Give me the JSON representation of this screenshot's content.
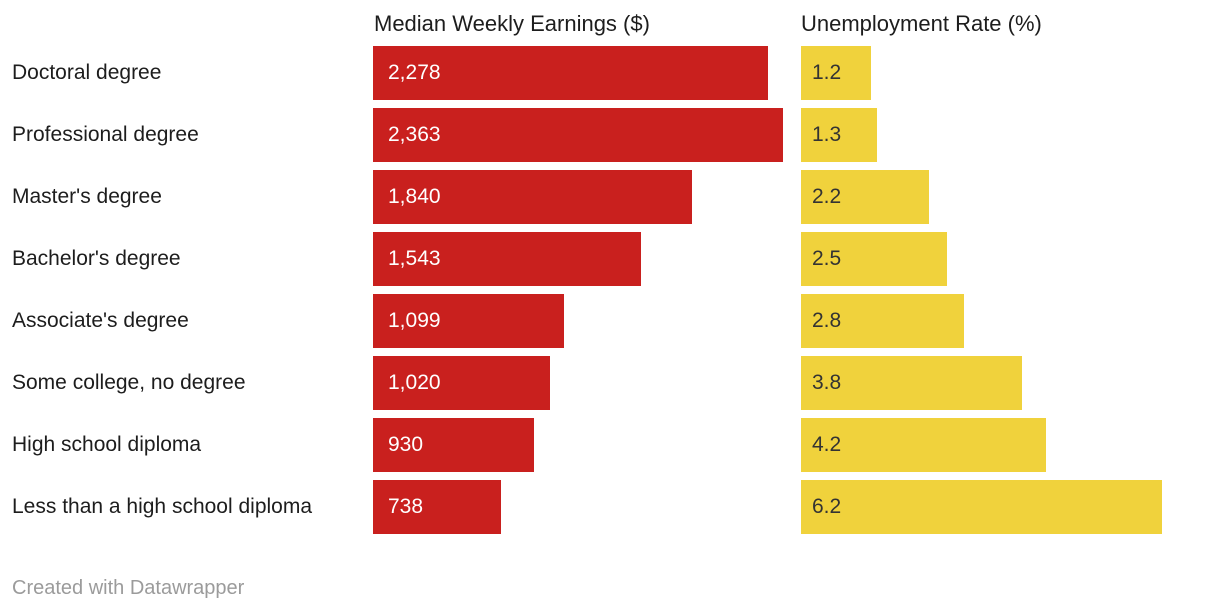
{
  "chart": {
    "earnings_header": "Median Weekly Earnings ($)",
    "rate_header": "Unemployment Rate (%)",
    "footer": "Created with Datawrapper"
  },
  "colors": {
    "earnings_bar": "#c9201e",
    "rate_bar": "#f0d23c",
    "earnings_value_text": "#ffffff",
    "rate_value_text": "#333333",
    "label_text": "#1d1d1d",
    "header_text": "#1d1d1d",
    "footer_text": "#9b9b9b"
  },
  "chart_data": {
    "type": "bar",
    "orientation": "horizontal",
    "title": "",
    "categories": [
      "Doctoral degree",
      "Professional degree",
      "Master's degree",
      "Bachelor's degree",
      "Associate's degree",
      "Some college, no degree",
      "High school diploma",
      "Less than a high school diploma"
    ],
    "series": [
      {
        "name": "Median Weekly Earnings ($)",
        "values": [
          2278,
          2363,
          1840,
          1543,
          1099,
          1020,
          930,
          738
        ],
        "value_labels": [
          "2,278",
          "2,363",
          "1,840",
          "1,543",
          "1,099",
          "1,020",
          "930",
          "738"
        ],
        "color": "#c9201e",
        "xlim": [
          0,
          2363
        ]
      },
      {
        "name": "Unemployment Rate (%)",
        "values": [
          1.2,
          1.3,
          2.2,
          2.5,
          2.8,
          3.8,
          4.2,
          6.2
        ],
        "value_labels": [
          "1.2",
          "1.3",
          "2.2",
          "2.5",
          "2.8",
          "3.8",
          "4.2",
          "6.2"
        ],
        "color": "#f0d23c",
        "xlim": [
          0,
          6.2
        ]
      }
    ],
    "legend_position": "column-headers",
    "grid": false,
    "value_labels_inside_bars": true,
    "attribution": "Created with Datawrapper"
  }
}
